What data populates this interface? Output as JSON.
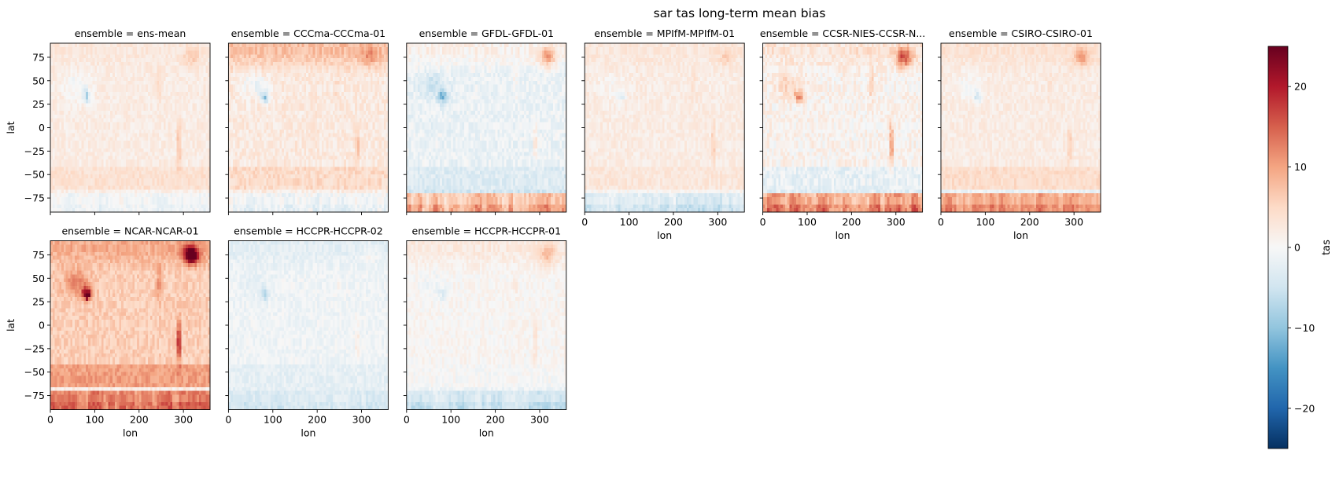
{
  "chart_data": {
    "type": "heatmap",
    "title": "sar tas long-term mean bias",
    "xlabel": "lon",
    "ylabel": "lat",
    "xlim": [
      0,
      360
    ],
    "ylim": [
      -90,
      90
    ],
    "x_ticks": [
      0,
      100,
      200,
      300
    ],
    "y_ticks": [
      75,
      50,
      25,
      0,
      -25,
      -50,
      -75
    ],
    "colorbar": {
      "label": "tas",
      "colormap": "RdBu_r",
      "range": [
        -25,
        25
      ],
      "ticks": [
        20,
        10,
        0,
        -10,
        -20
      ],
      "tick_labels": [
        "20",
        "10",
        "0",
        "−10",
        "−20"
      ]
    },
    "facet_layout": {
      "rows": 2,
      "cols": 6
    },
    "panels": [
      {
        "title": "ensemble = ens-mean",
        "field": {
          "base": 2.0,
          "arctic": 3.0,
          "antarctic": -2.0,
          "himalaya": -8.0,
          "andes": 8.0,
          "southern_ocean": 3.0,
          "greenland": 4.0,
          "noise": 1.5
        }
      },
      {
        "title": "ensemble = CCCma-CCCma-01",
        "field": {
          "base": 2.5,
          "arctic": 9.0,
          "antarctic": -3.0,
          "himalaya": -10.0,
          "andes": 6.0,
          "southern_ocean": 3.5,
          "greenland": 5.0,
          "noise": 2.0
        }
      },
      {
        "title": "ensemble = GFDL-GFDL-01",
        "field": {
          "base": -1.5,
          "arctic": 2.0,
          "antarctic": 12.0,
          "himalaya": -10.0,
          "andes": 6.0,
          "southern_ocean": -3.0,
          "greenland": 10.0,
          "noise": 2.0
        }
      },
      {
        "title": "ensemble = MPIfM-MPIfM-01",
        "field": {
          "base": 2.0,
          "arctic": 3.0,
          "antarctic": -6.0,
          "himalaya": -4.0,
          "andes": 6.0,
          "southern_ocean": 1.5,
          "greenland": 3.0,
          "noise": 1.5
        }
      },
      {
        "title": "ensemble = CCSR-NIES-CCSR-N...",
        "field": {
          "base": 1.0,
          "arctic": 4.0,
          "antarctic": 15.0,
          "himalaya": 12.0,
          "andes": 15.0,
          "southern_ocean": -5.0,
          "greenland": 14.0,
          "noise": 2.5
        }
      },
      {
        "title": "ensemble = CSIRO-CSIRO-01",
        "field": {
          "base": 2.0,
          "arctic": 4.0,
          "antarctic": 14.0,
          "himalaya": -6.0,
          "andes": 6.0,
          "southern_ocean": 4.0,
          "greenland": 7.0,
          "noise": 1.5
        }
      },
      {
        "title": "ensemble = NCAR-NCAR-01",
        "field": {
          "base": 6.0,
          "arctic": 10.0,
          "antarctic": 16.0,
          "himalaya": 18.0,
          "andes": 18.0,
          "southern_ocean": 7.0,
          "greenland": 22.0,
          "noise": 2.0
        }
      },
      {
        "title": "ensemble = HCCPR-HCCPR-02",
        "field": {
          "base": -1.0,
          "arctic": -3.0,
          "antarctic": -5.0,
          "himalaya": -4.0,
          "andes": 5.0,
          "southern_ocean": -2.0,
          "greenland": 2.0,
          "noise": 1.5
        }
      },
      {
        "title": "ensemble = HCCPR-HCCPR-01",
        "field": {
          "base": 0.5,
          "arctic": 3.0,
          "antarctic": -7.0,
          "himalaya": -4.0,
          "andes": 5.0,
          "southern_ocean": -1.0,
          "greenland": 6.0,
          "noise": 1.5
        }
      }
    ]
  }
}
